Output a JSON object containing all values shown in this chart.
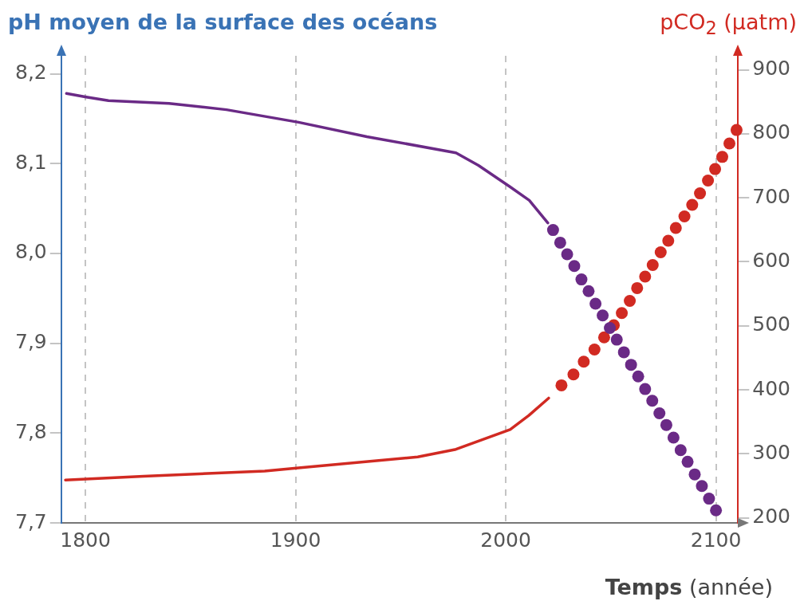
{
  "chart_data": {
    "type": "line",
    "ylabel": "pH moyen de la surface des océans",
    "y2label": "pCO$_{2}$ (µatm)",
    "xlabel": "Temps (année)",
    "xlim": [
      1788.5,
      2110.5
    ],
    "xticks": [
      1800,
      1900,
      2000,
      2100
    ],
    "ylim": [
      7.7,
      8.22
    ],
    "yticks": [
      {
        "value": 7.7,
        "label": "7,7"
      },
      {
        "value": 7.8,
        "label": "7,8"
      },
      {
        "value": 7.9,
        "label": "7,9"
      },
      {
        "value": 8.0,
        "label": "8,0"
      },
      {
        "value": 8.1,
        "label": "8,1"
      },
      {
        "value": 8.2,
        "label": "8,2"
      }
    ],
    "y2lim": [
      192,
      922
    ],
    "y2ticks": [
      200,
      300,
      400,
      500,
      600,
      700,
      800,
      900
    ],
    "grid": "x",
    "series": [
      {
        "type": "line",
        "color": "#6a2a86",
        "marker": "none",
        "x": [
          1791.0,
          1800.4,
          1811.0,
          1839.8,
          1867.1,
          1901.4,
          1933.9,
          1976.3,
          1987.0,
          2002.1,
          2011.2,
          2020.0
        ],
        "values": [
          8.178,
          8.174,
          8.17,
          8.167,
          8.16,
          8.146,
          8.13,
          8.112,
          8.098,
          8.074,
          8.059,
          8.034
        ]
      },
      {
        "type": "scatter",
        "color": "#6a2a86",
        "marker": "circle",
        "x": [
          2022.5,
          2025.9,
          2029.2,
          2032.6,
          2036.0,
          2039.4,
          2042.7,
          2046.1,
          2049.5,
          2052.8,
          2056.2,
          2059.6,
          2063.0,
          2066.3,
          2069.7,
          2073.1,
          2076.4,
          2079.8,
          2083.2,
          2086.5,
          2089.9,
          2093.3,
          2096.7,
          2100.0
        ],
        "values": [
          8.026,
          8.012,
          7.999,
          7.986,
          7.971,
          7.958,
          7.944,
          7.931,
          7.917,
          7.904,
          7.89,
          7.876,
          7.863,
          7.849,
          7.836,
          7.822,
          7.809,
          7.795,
          7.781,
          7.768,
          7.754,
          7.741,
          7.727,
          7.714
        ]
      },
      {
        "type": "line",
        "color": "#d12a22",
        "marker": "none",
        "axis": "y2",
        "x": [
          1790.5,
          1827.7,
          1885.3,
          1901.4,
          1958.1,
          1976.3,
          2002.1,
          2011.0,
          2020.4
        ],
        "values": [
          259,
          265,
          273,
          278,
          295,
          307,
          338,
          360,
          387
        ]
      },
      {
        "type": "scatter",
        "color": "#d12a22",
        "marker": "circle",
        "axis": "y2",
        "x": [
          2026.5,
          2032.2,
          2037.1,
          2042.2,
          2046.8,
          2051.4,
          2055.2,
          2059.0,
          2062.5,
          2066.3,
          2069.9,
          2073.7,
          2077.3,
          2080.9,
          2085.0,
          2088.7,
          2092.4,
          2096.2,
          2099.6,
          2103.0,
          2106.4,
          2109.8
        ],
        "values": [
          407,
          424,
          444,
          463,
          482,
          501,
          520,
          539,
          559,
          577,
          595,
          615,
          633,
          653,
          671,
          689,
          707,
          727,
          745,
          764,
          785,
          806
        ]
      }
    ]
  }
}
